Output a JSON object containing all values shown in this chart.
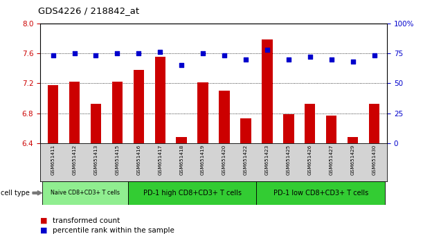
{
  "title": "GDS4226 / 218842_at",
  "samples": [
    "GSM651411",
    "GSM651412",
    "GSM651413",
    "GSM651415",
    "GSM651416",
    "GSM651417",
    "GSM651418",
    "GSM651419",
    "GSM651420",
    "GSM651422",
    "GSM651423",
    "GSM651425",
    "GSM651426",
    "GSM651427",
    "GSM651429",
    "GSM651430"
  ],
  "transformed_count": [
    7.18,
    7.22,
    6.93,
    7.22,
    7.38,
    7.55,
    6.48,
    7.21,
    7.1,
    6.73,
    7.78,
    6.79,
    6.93,
    6.77,
    6.48,
    6.93
  ],
  "percentile_rank": [
    73,
    75,
    73,
    75,
    75,
    76,
    65,
    75,
    73,
    70,
    78,
    70,
    72,
    70,
    68,
    73
  ],
  "ylim_left": [
    6.4,
    8.0
  ],
  "ylim_right": [
    0,
    100
  ],
  "yticks_left": [
    6.4,
    6.8,
    7.2,
    7.6,
    8.0
  ],
  "yticks_right": [
    0,
    25,
    50,
    75,
    100
  ],
  "ytick_labels_right": [
    "0",
    "25",
    "50",
    "75",
    "100%"
  ],
  "bar_color": "#cc0000",
  "dot_color": "#0000cc",
  "grid_color": "#000000",
  "cell_type_groups": [
    {
      "label": "Naive CD8+CD3+ T cells",
      "start": 0,
      "end": 4,
      "color": "#90ee90"
    },
    {
      "label": "PD-1 high CD8+CD3+ T cells",
      "start": 4,
      "end": 10,
      "color": "#33cc33"
    },
    {
      "label": "PD-1 low CD8+CD3+ T cells",
      "start": 10,
      "end": 16,
      "color": "#33cc33"
    }
  ],
  "legend_bar_label": "transformed count",
  "legend_dot_label": "percentile rank within the sample",
  "cell_type_label": "cell type",
  "bar_width": 0.5,
  "background_color": "#ffffff",
  "plot_bg_color": "#ffffff",
  "tick_color_left": "#cc0000",
  "tick_color_right": "#0000cc",
  "xtick_bg_color": "#d3d3d3",
  "naive_group_color": "#90ee90",
  "other_group_color": "#33cc33"
}
